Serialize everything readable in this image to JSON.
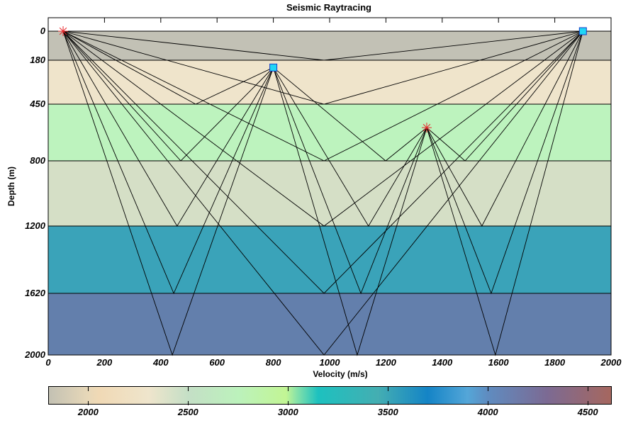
{
  "chart_data": {
    "type": "line",
    "title": "Seismic Raytracing",
    "xlabel": "Velocity (m/s)",
    "ylabel": "Depth (m)",
    "xlim": [
      0,
      2000
    ],
    "ylim": [
      2000,
      0
    ],
    "x_ticks": [
      0,
      200,
      400,
      600,
      800,
      1000,
      1200,
      1400,
      1600,
      1800,
      2000
    ],
    "y_ticks": [
      0,
      180,
      450,
      800,
      1200,
      1620,
      2000
    ],
    "layers": [
      {
        "top": 0,
        "bottom": 180,
        "color": "#c2c1b5"
      },
      {
        "top": 180,
        "bottom": 450,
        "color": "#efe4cb"
      },
      {
        "top": 450,
        "bottom": 800,
        "color": "#bdf3be"
      },
      {
        "top": 800,
        "bottom": 1200,
        "color": "#d5dfc6"
      },
      {
        "top": 1200,
        "bottom": 1620,
        "color": "#3aa3b9"
      },
      {
        "top": 1620,
        "bottom": 2000,
        "color": "#637fac"
      }
    ],
    "sources": [
      {
        "x": 53,
        "depth": 0,
        "marker": "red-star"
      },
      {
        "x": 1345,
        "depth": 595,
        "marker": "red-star"
      }
    ],
    "receivers": [
      {
        "x": 1900,
        "depth": 0,
        "marker": "cyan-square"
      },
      {
        "x": 800,
        "depth": 225,
        "marker": "cyan-square"
      }
    ],
    "rays": [
      [
        [
          53,
          0
        ],
        [
          980,
          180
        ],
        [
          1900,
          0
        ]
      ],
      [
        [
          53,
          0
        ],
        [
          980,
          450
        ],
        [
          1900,
          0
        ]
      ],
      [
        [
          53,
          0
        ],
        [
          980,
          800
        ],
        [
          1900,
          0
        ]
      ],
      [
        [
          53,
          0
        ],
        [
          980,
          1200
        ],
        [
          1900,
          0
        ]
      ],
      [
        [
          53,
          0
        ],
        [
          980,
          1620
        ],
        [
          1900,
          0
        ]
      ],
      [
        [
          53,
          0
        ],
        [
          980,
          2000
        ],
        [
          1900,
          0
        ]
      ],
      [
        [
          53,
          0
        ],
        [
          524,
          450
        ],
        [
          800,
          225
        ]
      ],
      [
        [
          53,
          0
        ],
        [
          471,
          800
        ],
        [
          800,
          225
        ]
      ],
      [
        [
          53,
          0
        ],
        [
          458,
          1200
        ],
        [
          800,
          225
        ]
      ],
      [
        [
          53,
          0
        ],
        [
          446,
          1620
        ],
        [
          800,
          225
        ]
      ],
      [
        [
          53,
          0
        ],
        [
          441,
          2000
        ],
        [
          800,
          225
        ]
      ],
      [
        [
          1345,
          595
        ],
        [
          1199,
          800
        ],
        [
          800,
          225
        ]
      ],
      [
        [
          1345,
          595
        ],
        [
          1481,
          800
        ],
        [
          1900,
          0
        ]
      ],
      [
        [
          1345,
          595
        ],
        [
          1138,
          1200
        ],
        [
          800,
          225
        ]
      ],
      [
        [
          1345,
          595
        ],
        [
          1541,
          1200
        ],
        [
          1900,
          0
        ]
      ],
      [
        [
          1345,
          595
        ],
        [
          1111,
          1620
        ],
        [
          800,
          225
        ]
      ],
      [
        [
          1345,
          595
        ],
        [
          1574,
          1620
        ],
        [
          1900,
          0
        ]
      ],
      [
        [
          1345,
          595
        ],
        [
          1098,
          2000
        ],
        [
          800,
          225
        ]
      ],
      [
        [
          1345,
          595
        ],
        [
          1589,
          2000
        ],
        [
          1900,
          0
        ]
      ]
    ],
    "colorbar": {
      "min": 1800,
      "max": 4620,
      "ticks": [
        2000,
        2500,
        3000,
        3500,
        4000,
        4500
      ],
      "stops": [
        {
          "v": 1800,
          "color": "#c3c1b3"
        },
        {
          "v": 2000,
          "color": "#e8d8b8"
        },
        {
          "v": 2050,
          "color": "#f0d9b5"
        },
        {
          "v": 2300,
          "color": "#efe5cc"
        },
        {
          "v": 2500,
          "color": "#c4dfc6"
        },
        {
          "v": 2750,
          "color": "#bcf2bc"
        },
        {
          "v": 2990,
          "color": "#c2f594"
        },
        {
          "v": 3040,
          "color": "#8ae3a8"
        },
        {
          "v": 3150,
          "color": "#1dc1bf"
        },
        {
          "v": 3450,
          "color": "#44aeb2"
        },
        {
          "v": 3700,
          "color": "#1484c6"
        },
        {
          "v": 3900,
          "color": "#54a6d8"
        },
        {
          "v": 4000,
          "color": "#5f8cc0"
        },
        {
          "v": 4300,
          "color": "#7c6a93"
        },
        {
          "v": 4620,
          "color": "#a6675f"
        }
      ]
    }
  },
  "labels": {
    "title": "Seismic Raytracing",
    "xlabel": "Velocity (m/s)",
    "ylabel": "Depth (m)",
    "x_ticks": [
      "0",
      "200",
      "400",
      "600",
      "800",
      "1000",
      "1200",
      "1400",
      "1600",
      "1800",
      "2000"
    ],
    "y_ticks": [
      "0",
      "180",
      "450",
      "800",
      "1200",
      "1620",
      "2000"
    ],
    "cb_ticks": [
      "2000",
      "2500",
      "3000",
      "3500",
      "4000",
      "4500"
    ]
  }
}
